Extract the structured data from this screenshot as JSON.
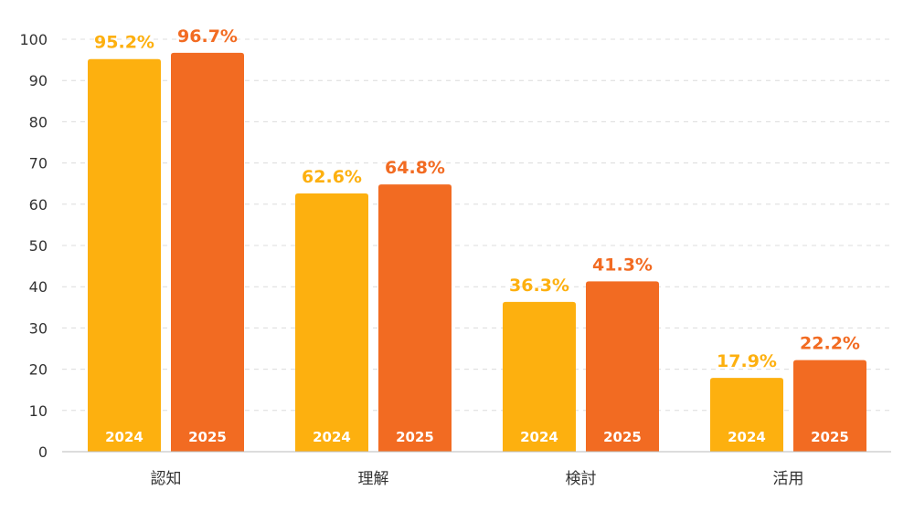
{
  "chart_data": {
    "type": "bar",
    "categories": [
      "認知",
      "理解",
      "検討",
      "活用"
    ],
    "series": [
      {
        "name": "2024",
        "color": "#FDB00F",
        "values": [
          95.2,
          62.6,
          36.3,
          17.9
        ],
        "labels": [
          "95.2%",
          "62.6%",
          "36.3%",
          "17.9%"
        ]
      },
      {
        "name": "2025",
        "color": "#F26B22",
        "values": [
          96.7,
          64.8,
          41.3,
          22.2
        ],
        "labels": [
          "96.7%",
          "64.8%",
          "41.3%",
          "22.2%"
        ]
      }
    ],
    "ylim": [
      0,
      100
    ],
    "yticks": [
      "0",
      "10",
      "20",
      "30",
      "40",
      "50",
      "60",
      "70",
      "80",
      "90",
      "100"
    ],
    "grid": true,
    "title": "",
    "xlabel": "",
    "ylabel": ""
  }
}
